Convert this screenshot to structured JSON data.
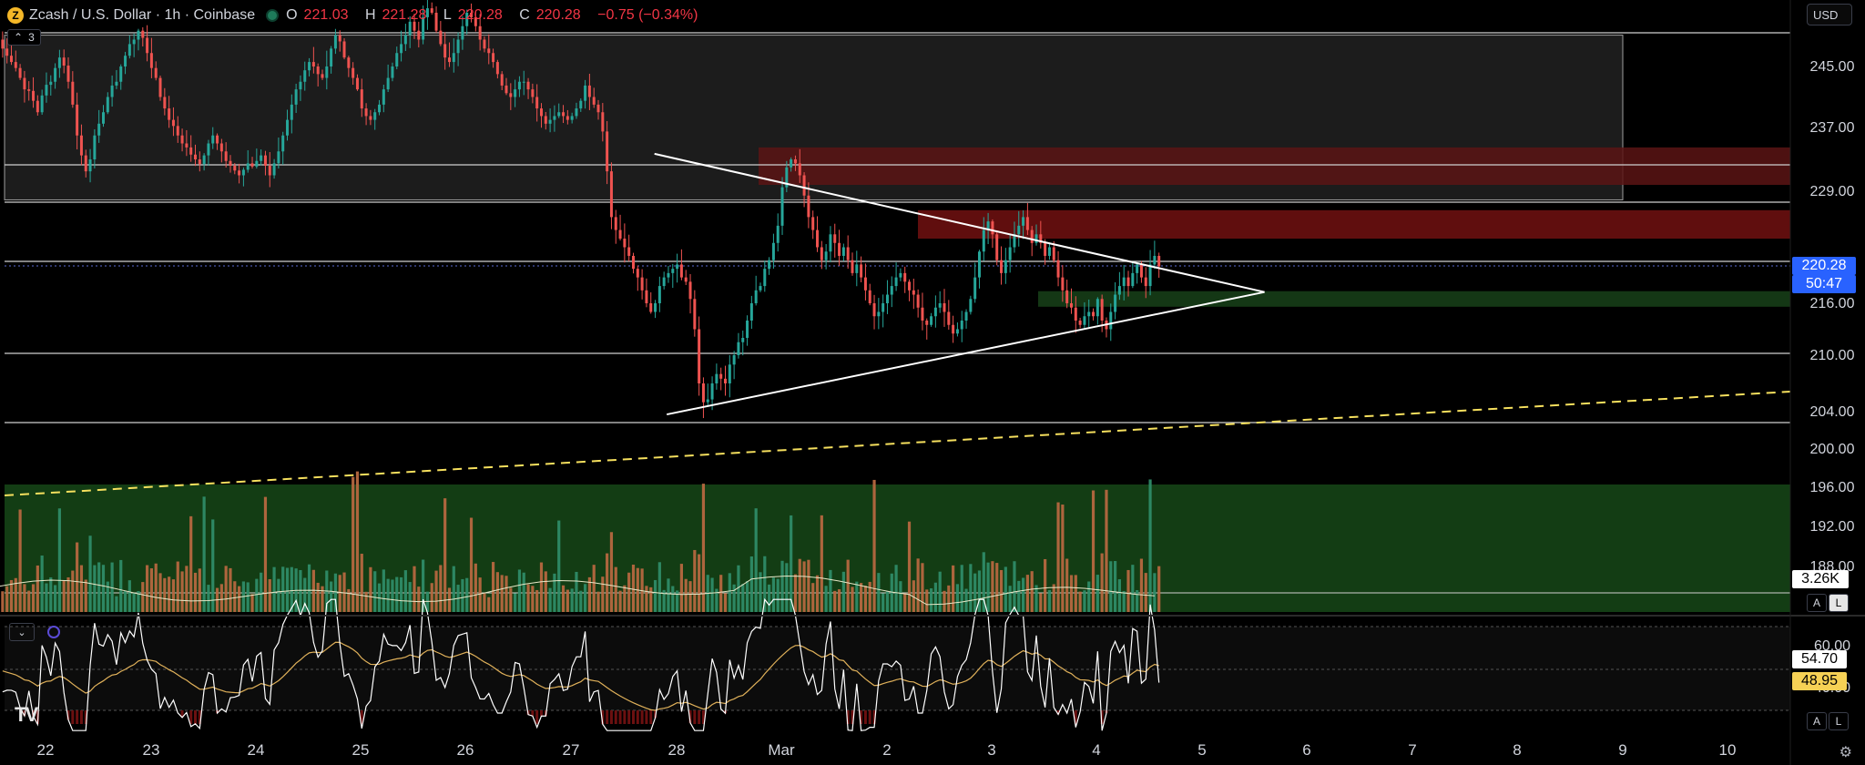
{
  "header": {
    "symbol": "Zcash / U.S. Dollar · 1h · Coinbase",
    "coin_glyph": "Z",
    "ohlc": [
      {
        "k": "O",
        "v": "221.03"
      },
      {
        "k": "H",
        "v": "221.28"
      },
      {
        "k": "L",
        "v": "220.28"
      },
      {
        "k": "C",
        "v": "220.28"
      }
    ],
    "change": "−0.75 (−0.34%)",
    "collapse_count": "3"
  },
  "currency": "USD",
  "price_axis": {
    "ticks": [
      "245.00",
      "237.00",
      "229.00",
      "216.00",
      "210.00",
      "204.00",
      "200.00",
      "196.00",
      "192.00",
      "188.00"
    ],
    "last_price_label": "220.28",
    "countdown_label": "50:47",
    "volume_label": "3.26K"
  },
  "rsi_axis": {
    "ticks": [
      "60.00",
      "40.00"
    ],
    "rsi_label": "54.70",
    "ma_label": "48.95"
  },
  "scale_buttons": {
    "auto": "A",
    "log": "L"
  },
  "time_axis": {
    "labels": [
      "22",
      "23",
      "24",
      "25",
      "26",
      "27",
      "28",
      "Mar",
      "2",
      "3",
      "4",
      "5",
      "6",
      "7",
      "8",
      "9",
      "10"
    ]
  },
  "logo_text": "TV",
  "colors": {
    "up": "#26a69a",
    "down": "#ef5350",
    "last_price_box": "#2962ff",
    "rsi_line": "#ffffff",
    "rsi_ma": "#e0b15a",
    "trendline_dashed": "#f6e05e",
    "demand_zone": "#1b5e20",
    "supply_zone": "#8b1a1a"
  },
  "chart_data": {
    "type": "candlestick",
    "title": "Zcash / U.S. Dollar · 1h · Coinbase",
    "interval": "1h",
    "last_price": 220.28,
    "y_range": [
      186,
      251
    ],
    "levels": [
      248.5,
      232.3,
      228.0,
      220.5,
      210.5,
      203.0
    ],
    "zones": [
      {
        "kind": "range-box",
        "top": 248,
        "bottom": 228
      },
      {
        "kind": "supply",
        "top": 234.5,
        "bottom": 229.8
      },
      {
        "kind": "supply",
        "top": 226.8,
        "bottom": 223.5
      },
      {
        "kind": "demand",
        "top": 217.4,
        "bottom": 215.6
      },
      {
        "kind": "demand",
        "top": 196.0,
        "bottom": 182.0
      }
    ],
    "triangle": {
      "upper": [
        {
          "day": 27.55,
          "price": 233.7
        },
        {
          "day": 31.95,
          "price": 217.3
        }
      ],
      "lower": [
        {
          "day": 27.0,
          "price": 203.7
        },
        {
          "day": 31.95,
          "price": 217.3
        }
      ]
    },
    "dashed_trendline": [
      {
        "day": 21.0,
        "price": 196.6
      },
      {
        "day": 38.6,
        "price": 206.0
      }
    ],
    "x_days_start": 21.55,
    "days_per_candle": 0.041667,
    "closes": [
      248.0,
      247.0,
      246.2,
      245.5,
      244.8,
      243.5,
      242.0,
      241.8,
      240.5,
      239.0,
      241.2,
      242.6,
      243.0,
      244.8,
      246.0,
      245.1,
      243.0,
      240.0,
      236.0,
      233.5,
      231.5,
      233.0,
      236.0,
      237.5,
      239.0,
      241.0,
      242.5,
      243.0,
      245.0,
      246.2,
      247.5,
      248.0,
      249.0,
      248.2,
      246.5,
      244.8,
      243.5,
      241.0,
      239.5,
      238.0,
      237.2,
      236.0,
      235.0,
      234.5,
      233.6,
      233.0,
      232.4,
      233.5,
      235.0,
      236.0,
      235.0,
      234.0,
      232.8,
      232.2,
      231.6,
      231.0,
      231.7,
      232.5,
      232.1,
      232.8,
      233.5,
      232.2,
      231.0,
      232.5,
      234.0,
      236.0,
      238.0,
      240.0,
      242.0,
      243.0,
      244.5,
      245.5,
      245.0,
      244.0,
      243.5,
      245.0,
      247.0,
      248.5,
      247.8,
      246.0,
      244.8,
      243.5,
      242.0,
      239.5,
      238.5,
      238.0,
      239.0,
      240.0,
      242.0,
      243.5,
      245.0,
      246.5,
      247.5,
      248.5,
      250.0,
      249.0,
      248.0,
      250.5,
      251.5,
      251.0,
      249.0,
      247.5,
      246.0,
      245.5,
      246.5,
      248.0,
      249.5,
      251.0,
      250.5,
      249.5,
      248.0,
      247.0,
      246.5,
      245.5,
      244.0,
      242.5,
      241.5,
      241.0,
      242.0,
      243.0,
      243.0,
      242.0,
      241.0,
      239.5,
      238.5,
      237.5,
      238.0,
      238.5,
      239.0,
      238.5,
      238.0,
      238.5,
      239.5,
      240.5,
      242.5,
      241.0,
      240.0,
      239.0,
      236.5,
      231.5,
      226.0,
      224.5,
      223.5,
      222.5,
      221.5,
      220.0,
      219.0,
      217.5,
      216.0,
      215.0,
      216.0,
      218.0,
      219.0,
      219.5,
      220.0,
      220.5,
      219.0,
      218.5,
      216.5,
      213.0,
      207.0,
      205.0,
      205.3,
      207.0,
      208.0,
      207.5,
      207.0,
      209.0,
      210.0,
      211.5,
      212.0,
      214.0,
      216.0,
      217.5,
      218.0,
      220.0,
      221.0,
      223.0,
      225.0,
      229.5,
      232.0,
      233.0,
      232.5,
      231.0,
      228.5,
      226.0,
      224.5,
      222.5,
      221.0,
      222.0,
      224.0,
      223.0,
      221.5,
      222.5,
      221.0,
      219.5,
      220.5,
      219.0,
      217.5,
      216.0,
      214.5,
      215.0,
      216.0,
      217.0,
      218.0,
      219.0,
      219.5,
      218.5,
      217.5,
      217.0,
      215.5,
      214.0,
      213.5,
      214.5,
      215.5,
      216.0,
      215.0,
      213.5,
      212.5,
      213.0,
      214.0,
      215.0,
      216.5,
      219.0,
      222.0,
      224.5,
      225.5,
      224.0,
      221.0,
      219.5,
      221.0,
      222.5,
      224.0,
      225.0,
      226.0,
      224.5,
      223.0,
      224.0,
      223.0,
      221.5,
      222.5,
      221.0,
      219.0,
      217.5,
      216.0,
      215.5,
      214.0,
      213.5,
      214.5,
      215.0,
      214.5,
      216.5,
      214.0,
      213.0,
      215.0,
      217.0,
      218.0,
      219.0,
      218.0,
      219.5,
      220.5,
      219.0,
      218.0,
      220.5,
      221.5,
      220.28
    ],
    "volume_max": 1.0,
    "rsi_ticks": [
      60,
      40
    ],
    "rsi_last": 54.7,
    "rsi_ma_last": 48.95
  }
}
